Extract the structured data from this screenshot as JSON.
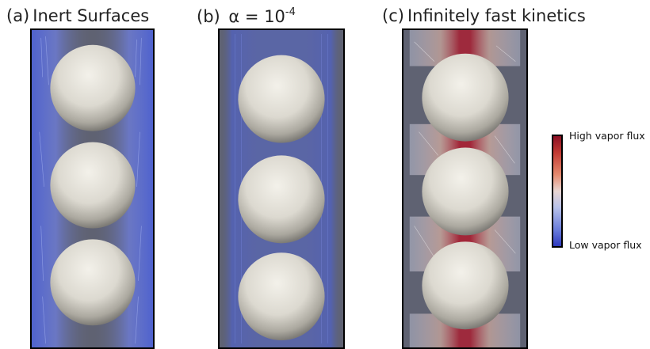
{
  "panels": [
    {
      "tag": "(a)",
      "title": "Inert Surfaces"
    },
    {
      "tag": "(b)",
      "title_prefix": "α = 10",
      "title_exp": "-4"
    },
    {
      "tag": "(c)",
      "title": "Infinitely fast kinetics"
    }
  ],
  "colorbar": {
    "high_label": "High vapor flux",
    "low_label": "Low vapor flux",
    "colors": [
      "#8b1024",
      "#c23a33",
      "#e58a6e",
      "#e9d6d2",
      "#b8c2ea",
      "#6a7ddc",
      "#2e3ac0"
    ]
  },
  "colors": {
    "panel_background": "#5f6272",
    "sphere": "#e8e6de",
    "streamline_low": "#4d62d8",
    "streamline_high": "#b3182b"
  }
}
